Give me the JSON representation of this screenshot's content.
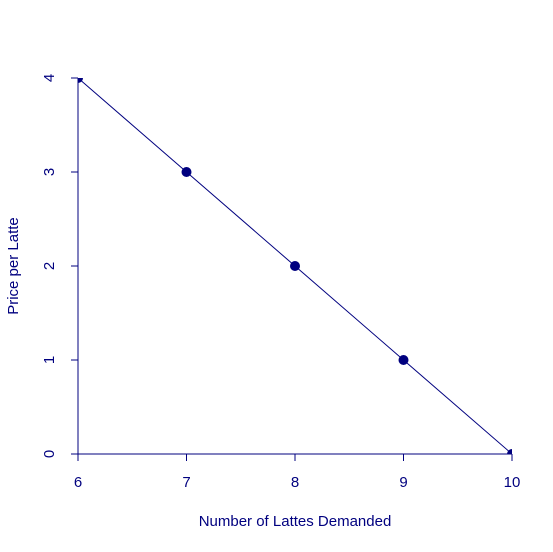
{
  "chart_data": {
    "type": "line",
    "markers": true,
    "x_label": "Number of Lattes Demanded",
    "y_label": "Price per Latte",
    "x": [
      6,
      7,
      8,
      9,
      10
    ],
    "values": [
      4,
      3,
      2,
      1,
      0
    ],
    "color": "#00007f",
    "xlim": [
      6,
      10
    ],
    "ylim": [
      0,
      4
    ],
    "xticks": [
      6,
      7,
      8,
      9,
      10
    ],
    "yticks": [
      0,
      1,
      2,
      3,
      4
    ]
  }
}
